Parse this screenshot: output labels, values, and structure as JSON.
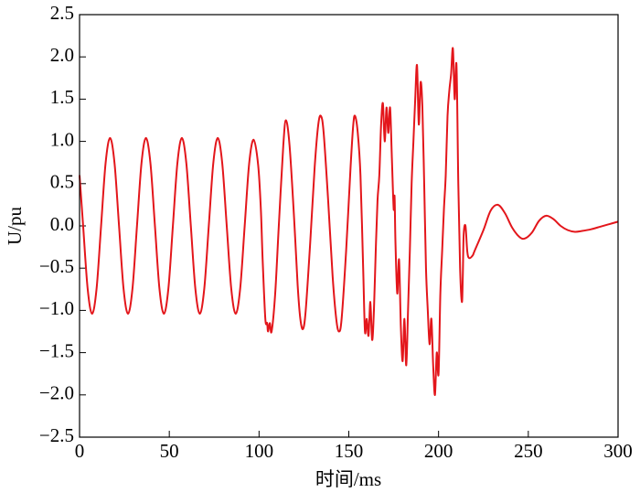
{
  "chart_data": {
    "type": "line",
    "xlabel": "时间/ms",
    "ylabel": "U/pu",
    "xlim": [
      0,
      300
    ],
    "ylim": [
      -2.5,
      2.5
    ],
    "xticks": [
      0,
      50,
      100,
      150,
      200,
      250,
      300
    ],
    "yticks": [
      {
        "value": -2.5,
        "label": "−2.5"
      },
      {
        "value": -2,
        "label": "−2.0"
      },
      {
        "value": -1.5,
        "label": "−1.5"
      },
      {
        "value": -1,
        "label": "−1.0"
      },
      {
        "value": -0.5,
        "label": "−0.5"
      },
      {
        "value": 0,
        "label": "0.0"
      },
      0.5,
      {
        "value": 1,
        "label": "1.0"
      },
      1.5,
      {
        "value": 2,
        "label": "2.0"
      },
      2.5
    ],
    "grid": false,
    "series": [
      {
        "color": "#e3161b",
        "x": [
          0,
          2,
          4.5,
          7,
          9.5,
          12,
          14.5,
          17,
          19.5,
          22,
          24.5,
          27,
          29.5,
          32,
          34.5,
          37,
          39.5,
          42,
          44.5,
          47,
          49.5,
          52,
          54.5,
          57,
          59.5,
          62,
          64.5,
          67,
          69.5,
          72,
          74.5,
          77,
          79.5,
          82,
          84.5,
          87,
          89.5,
          92,
          94.5,
          97,
          99.5,
          101,
          102,
          103.5,
          104.5,
          105,
          106,
          107,
          109,
          111,
          113.5,
          115,
          117,
          119.5,
          121.5,
          123,
          124.5,
          126,
          128.5,
          131,
          133,
          134.5,
          136,
          138.5,
          141,
          143,
          144.5,
          146,
          148.5,
          151,
          152.5,
          153.5,
          155,
          156.5,
          158,
          159,
          160,
          161,
          162,
          163,
          164,
          165,
          166,
          167,
          168,
          169,
          170,
          171,
          172,
          173,
          174,
          175,
          175.5,
          176,
          177,
          178,
          179,
          180,
          181,
          182,
          183,
          184,
          185,
          186,
          187,
          188,
          189,
          190,
          191,
          192,
          193,
          194,
          195,
          196,
          197,
          198,
          199,
          200,
          201,
          202,
          203,
          204,
          205,
          206,
          207,
          208,
          209,
          210,
          211,
          212,
          213,
          213.5,
          214,
          215,
          216,
          217,
          219,
          220,
          225,
          229,
          233,
          237,
          241,
          245,
          248,
          252,
          256,
          260,
          264,
          268,
          272,
          276,
          280,
          285,
          290,
          295,
          300
        ],
        "values": [
          0.6,
          0,
          -0.74,
          -1.04,
          -0.74,
          0,
          0.74,
          1.04,
          0.74,
          0,
          -0.74,
          -1.04,
          -0.74,
          0,
          0.74,
          1.04,
          0.74,
          0,
          -0.74,
          -1.04,
          -0.74,
          0,
          0.74,
          1.04,
          0.74,
          0,
          -0.74,
          -1.04,
          -0.74,
          0,
          0.74,
          1.04,
          0.74,
          0,
          -0.74,
          -1.04,
          -0.74,
          0,
          0.74,
          1.02,
          0.72,
          0.2,
          -0.4,
          -1.1,
          -1.15,
          -1.25,
          -1.15,
          -1.25,
          -0.8,
          0,
          0.95,
          1.25,
          0.95,
          0.1,
          -0.7,
          -1.1,
          -1.22,
          -1,
          -0.2,
          0.7,
          1.2,
          1.3,
          1.1,
          0.3,
          -0.6,
          -1.1,
          -1.25,
          -1.1,
          -0.3,
          0.7,
          1.2,
          1.3,
          1.1,
          0.6,
          -0.5,
          -1.25,
          -1.1,
          -1.3,
          -0.9,
          -1.35,
          -1,
          -0.3,
          0.3,
          0.6,
          1.2,
          1.45,
          1,
          1.4,
          1.1,
          1.4,
          0.8,
          0.2,
          0.35,
          -0.2,
          -0.8,
          -0.4,
          -1.2,
          -1.6,
          -1.1,
          -1.65,
          -1,
          -0.3,
          0.5,
          1,
          1.5,
          1.9,
          1.2,
          1.7,
          1.4,
          0.5,
          -0.5,
          -1,
          -1.4,
          -1.1,
          -1.65,
          -2,
          -1.5,
          -1.75,
          -0.8,
          -0.3,
          0.2,
          0.6,
          1.3,
          1.6,
          1.8,
          2.1,
          1.5,
          1.9,
          0.5,
          -0.5,
          -0.9,
          -0.6,
          -0.1,
          0,
          -0.3,
          -0.38,
          -0.35,
          -0.3,
          -0.05,
          0.18,
          0.25,
          0.15,
          -0.02,
          -0.13,
          -0.15,
          -0.08,
          0.06,
          0.12,
          0.08,
          0,
          -0.05,
          -0.07,
          -0.06,
          -0.04,
          -0.01,
          0.02,
          0.05
        ]
      }
    ]
  }
}
